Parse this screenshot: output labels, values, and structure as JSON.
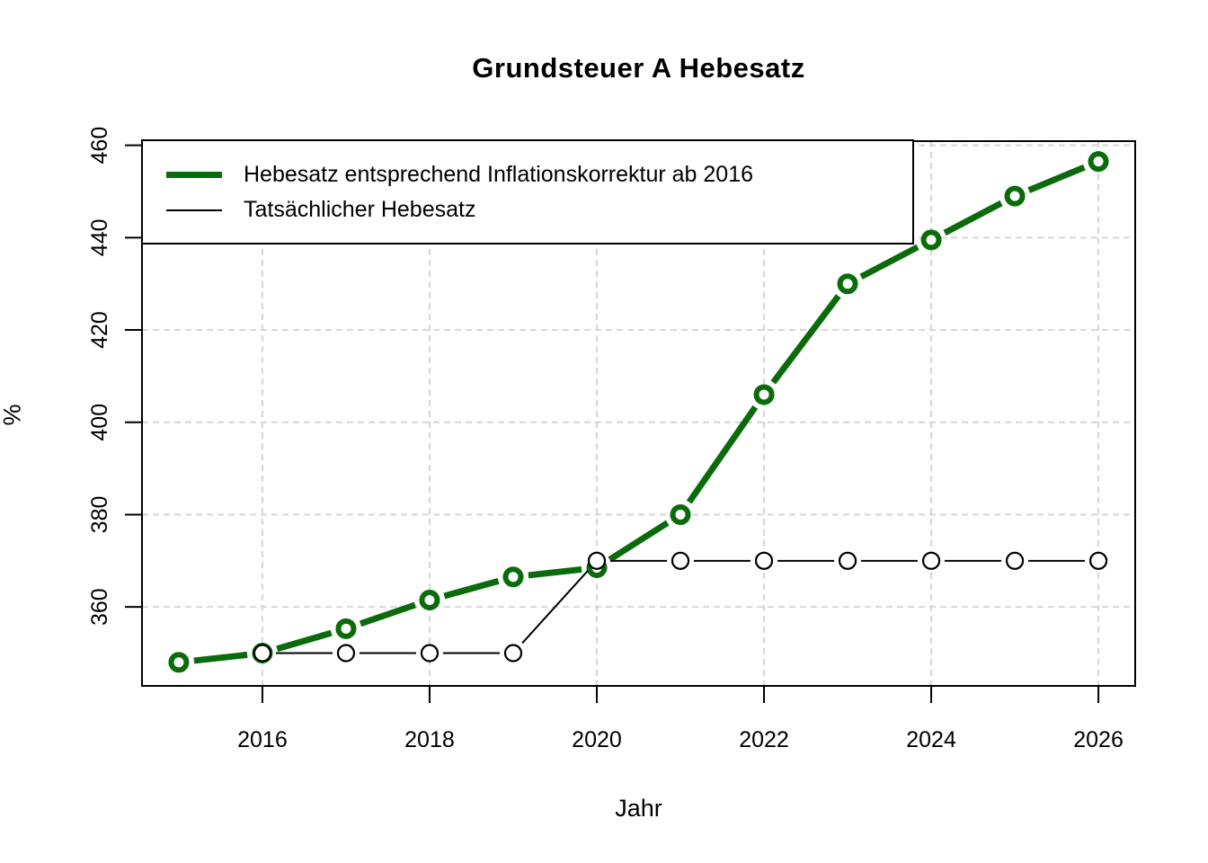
{
  "chart_data": {
    "type": "line",
    "title": "Grundsteuer A Hebesatz",
    "xlabel": "Jahr",
    "ylabel": "%",
    "x_ticks": [
      2016,
      2018,
      2020,
      2022,
      2024,
      2026
    ],
    "y_ticks": [
      360,
      380,
      400,
      420,
      440,
      460
    ],
    "xlim": [
      2014.56,
      2026.44
    ],
    "ylim": [
      342.9,
      460.9
    ],
    "grid": true,
    "grid_color": "#d6d6d6",
    "legend_position": "topleft",
    "series": [
      {
        "name": "Hebesatz entsprechend Inflationskorrektur ab 2016",
        "color": "#0a6b0a",
        "line_width": 7,
        "marker": "open-circle",
        "x": [
          2015,
          2016,
          2017,
          2018,
          2019,
          2020,
          2021,
          2022,
          2023,
          2024,
          2025,
          2026
        ],
        "values": [
          348,
          350,
          355.3,
          361.5,
          366.5,
          368.5,
          380,
          406,
          430,
          439.5,
          449,
          456.5
        ]
      },
      {
        "name": "Tatsächlicher Hebesatz",
        "color": "#000000",
        "line_width": 2,
        "marker": "open-circle",
        "x": [
          2016,
          2017,
          2018,
          2019,
          2020,
          2021,
          2022,
          2023,
          2024,
          2025,
          2026
        ],
        "values": [
          350,
          350,
          350,
          350,
          370,
          370,
          370,
          370,
          370,
          370,
          370
        ]
      }
    ]
  }
}
